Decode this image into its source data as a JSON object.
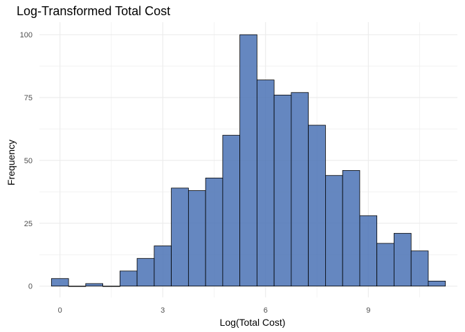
{
  "chart_data": {
    "type": "bar",
    "title": "Log-Transformed Total Cost",
    "xlabel": "Log(Total Cost)",
    "ylabel": "Frequency",
    "bin_width": 0.5,
    "bins": [
      {
        "x": 0.0,
        "count": 3
      },
      {
        "x": 0.5,
        "count": 0
      },
      {
        "x": 1.0,
        "count": 1
      },
      {
        "x": 1.5,
        "count": 0
      },
      {
        "x": 2.0,
        "count": 6
      },
      {
        "x": 2.5,
        "count": 11
      },
      {
        "x": 3.0,
        "count": 16
      },
      {
        "x": 3.5,
        "count": 39
      },
      {
        "x": 4.0,
        "count": 38
      },
      {
        "x": 4.5,
        "count": 43
      },
      {
        "x": 5.0,
        "count": 60
      },
      {
        "x": 5.5,
        "count": 100
      },
      {
        "x": 6.0,
        "count": 82
      },
      {
        "x": 6.5,
        "count": 76
      },
      {
        "x": 7.0,
        "count": 77
      },
      {
        "x": 7.5,
        "count": 64
      },
      {
        "x": 8.0,
        "count": 44
      },
      {
        "x": 8.5,
        "count": 46
      },
      {
        "x": 9.0,
        "count": 28
      },
      {
        "x": 9.5,
        "count": 17
      },
      {
        "x": 10.0,
        "count": 21
      },
      {
        "x": 10.5,
        "count": 14
      },
      {
        "x": 11.0,
        "count": 2
      }
    ],
    "xlim": [
      -0.6,
      11.6
    ],
    "ylim": [
      -4.5,
      105
    ],
    "xticks": [
      0,
      3,
      6,
      9
    ],
    "yticks": [
      0,
      25,
      50,
      75,
      100
    ],
    "grid": true,
    "colors": {
      "fill": "#4a72b5",
      "outline": "#000000",
      "grid": "#ebebeb",
      "tick_label": "#4d4d4d"
    }
  }
}
